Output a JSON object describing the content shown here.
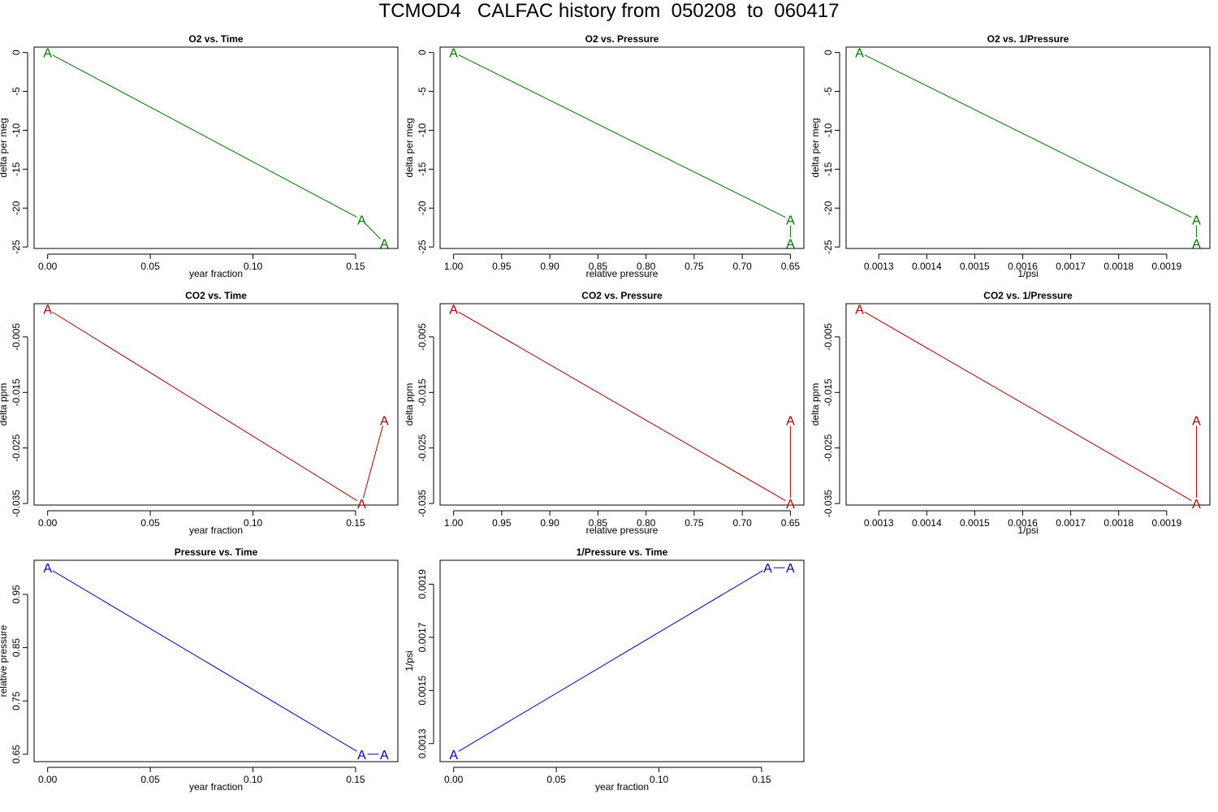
{
  "title": "TCMOD4   CALFAC history from  050208  to  060417",
  "chart_data": [
    {
      "type": "line",
      "title": "O2 vs. Time",
      "xlabel": "year fraction",
      "ylabel": "delta per meg",
      "color": "#007000",
      "x": [
        0.0,
        0.153,
        0.164
      ],
      "y": [
        0.0,
        -21.5,
        -24.5
      ],
      "xlim": [
        -0.0066,
        0.1706
      ],
      "ylim": [
        -25.19,
        0.69
      ],
      "xticks": [
        0.0,
        0.05,
        0.1,
        0.15
      ],
      "xtick_labels": [
        "0.00",
        "0.05",
        "0.10",
        "0.15"
      ],
      "yticks": [
        0,
        -5,
        -10,
        -15,
        -20,
        -25
      ],
      "ytick_labels": [
        "0",
        "-5",
        "-10",
        "-15",
        "-20",
        "-25"
      ],
      "point_label": "A"
    },
    {
      "type": "line",
      "title": "O2 vs. Pressure",
      "xlabel": "relative pressure",
      "ylabel": "delta per meg",
      "color": "#007000",
      "x": [
        1.0,
        0.65,
        0.65
      ],
      "y": [
        0.0,
        -21.5,
        -24.5
      ],
      "xlim": [
        1.014,
        0.636
      ],
      "ylim": [
        -25.19,
        0.69
      ],
      "xticks": [
        1.0,
        0.95,
        0.9,
        0.85,
        0.8,
        0.75,
        0.7,
        0.65
      ],
      "xtick_labels": [
        "1.00",
        "0.95",
        "0.90",
        "0.85",
        "0.80",
        "0.75",
        "0.70",
        "0.65"
      ],
      "yticks": [
        0,
        -5,
        -10,
        -15,
        -20,
        -25
      ],
      "ytick_labels": [
        "0",
        "-5",
        "-10",
        "-15",
        "-20",
        "-25"
      ],
      "point_label": "A"
    },
    {
      "type": "line",
      "title": "O2 vs. 1/Pressure",
      "xlabel": "1/psi",
      "ylabel": "delta per meg",
      "color": "#007000",
      "x": [
        0.00126,
        0.001962,
        0.001962
      ],
      "y": [
        0.0,
        -21.5,
        -24.5
      ],
      "xlim": [
        0.001232,
        0.00199
      ],
      "ylim": [
        -25.19,
        0.69
      ],
      "xticks": [
        0.0013,
        0.0014,
        0.0015,
        0.0016,
        0.0017,
        0.0018,
        0.0019
      ],
      "xtick_labels": [
        "0.0013",
        "0.0014",
        "0.0015",
        "0.0016",
        "0.0017",
        "0.0018",
        "0.0019"
      ],
      "yticks": [
        0,
        -5,
        -10,
        -15,
        -20,
        -25
      ],
      "ytick_labels": [
        "0",
        "-5",
        "-10",
        "-15",
        "-20",
        "-25"
      ],
      "point_label": "A"
    },
    {
      "type": "line",
      "title": "CO2 vs. Time",
      "xlabel": "year fraction",
      "ylabel": "delta ppm",
      "color": "#a00000",
      "x": [
        0.0,
        0.153,
        0.164
      ],
      "y": [
        0.0,
        -0.035,
        -0.02
      ],
      "xlim": [
        -0.0066,
        0.1706
      ],
      "ylim": [
        -0.03528,
        0.00098
      ],
      "xticks": [
        0.0,
        0.05,
        0.1,
        0.15
      ],
      "xtick_labels": [
        "0.00",
        "0.05",
        "0.10",
        "0.15"
      ],
      "yticks": [
        -0.005,
        -0.015,
        -0.025,
        -0.035
      ],
      "ytick_labels": [
        "-0.005",
        "-0.015",
        "-0.025",
        "-0.035"
      ],
      "point_label": "A"
    },
    {
      "type": "line",
      "title": "CO2 vs. Pressure",
      "xlabel": "relative pressure",
      "ylabel": "delta ppm",
      "color": "#a00000",
      "x": [
        1.0,
        0.65,
        0.65
      ],
      "y": [
        0.0,
        -0.035,
        -0.02
      ],
      "xlim": [
        1.014,
        0.636
      ],
      "ylim": [
        -0.03528,
        0.00098
      ],
      "xticks": [
        1.0,
        0.95,
        0.9,
        0.85,
        0.8,
        0.75,
        0.7,
        0.65
      ],
      "xtick_labels": [
        "1.00",
        "0.95",
        "0.90",
        "0.85",
        "0.80",
        "0.75",
        "0.70",
        "0.65"
      ],
      "yticks": [
        -0.005,
        -0.015,
        -0.025,
        -0.035
      ],
      "ytick_labels": [
        "-0.005",
        "-0.015",
        "-0.025",
        "-0.035"
      ],
      "point_label": "A"
    },
    {
      "type": "line",
      "title": "CO2 vs. 1/Pressure",
      "xlabel": "1/psi",
      "ylabel": "delta ppm",
      "color": "#a00000",
      "x": [
        0.00126,
        0.001962,
        0.001962
      ],
      "y": [
        0.0,
        -0.035,
        -0.02
      ],
      "xlim": [
        0.001232,
        0.00199
      ],
      "ylim": [
        -0.03528,
        0.00098
      ],
      "xticks": [
        0.0013,
        0.0014,
        0.0015,
        0.0016,
        0.0017,
        0.0018,
        0.0019
      ],
      "xtick_labels": [
        "0.0013",
        "0.0014",
        "0.0015",
        "0.0016",
        "0.0017",
        "0.0018",
        "0.0019"
      ],
      "yticks": [
        -0.005,
        -0.015,
        -0.025,
        -0.035
      ],
      "ytick_labels": [
        "-0.005",
        "-0.015",
        "-0.025",
        "-0.035"
      ],
      "point_label": "A"
    },
    {
      "type": "line",
      "title": "Pressure vs. Time",
      "xlabel": "year fraction",
      "ylabel": "relative pressure",
      "color": "#0000b0",
      "x": [
        0.0,
        0.153,
        0.164
      ],
      "y": [
        1.0,
        0.65,
        0.65
      ],
      "xlim": [
        -0.0066,
        0.1706
      ],
      "ylim": [
        0.636,
        1.014
      ],
      "xticks": [
        0.0,
        0.05,
        0.1,
        0.15
      ],
      "xtick_labels": [
        "0.00",
        "0.05",
        "0.10",
        "0.15"
      ],
      "yticks": [
        0.65,
        0.75,
        0.85,
        0.95
      ],
      "ytick_labels": [
        "0.65",
        "0.75",
        "0.85",
        "0.95"
      ],
      "point_label": "A"
    },
    {
      "type": "line",
      "title": "1/Pressure vs. Time",
      "xlabel": "year fraction",
      "ylabel": "1/psi",
      "color": "#0000b0",
      "x": [
        0.0,
        0.153,
        0.164
      ],
      "y": [
        0.00126,
        0.001962,
        0.001962
      ],
      "xlim": [
        -0.0066,
        0.1706
      ],
      "ylim": [
        0.001232,
        0.00199
      ],
      "xticks": [
        0.0,
        0.05,
        0.1,
        0.15
      ],
      "xtick_labels": [
        "0.00",
        "0.05",
        "0.10",
        "0.15"
      ],
      "yticks": [
        0.0013,
        0.0015,
        0.0017,
        0.0019
      ],
      "ytick_labels": [
        "0.0013",
        "0.0015",
        "0.0017",
        "0.0019"
      ],
      "point_label": "A"
    }
  ]
}
